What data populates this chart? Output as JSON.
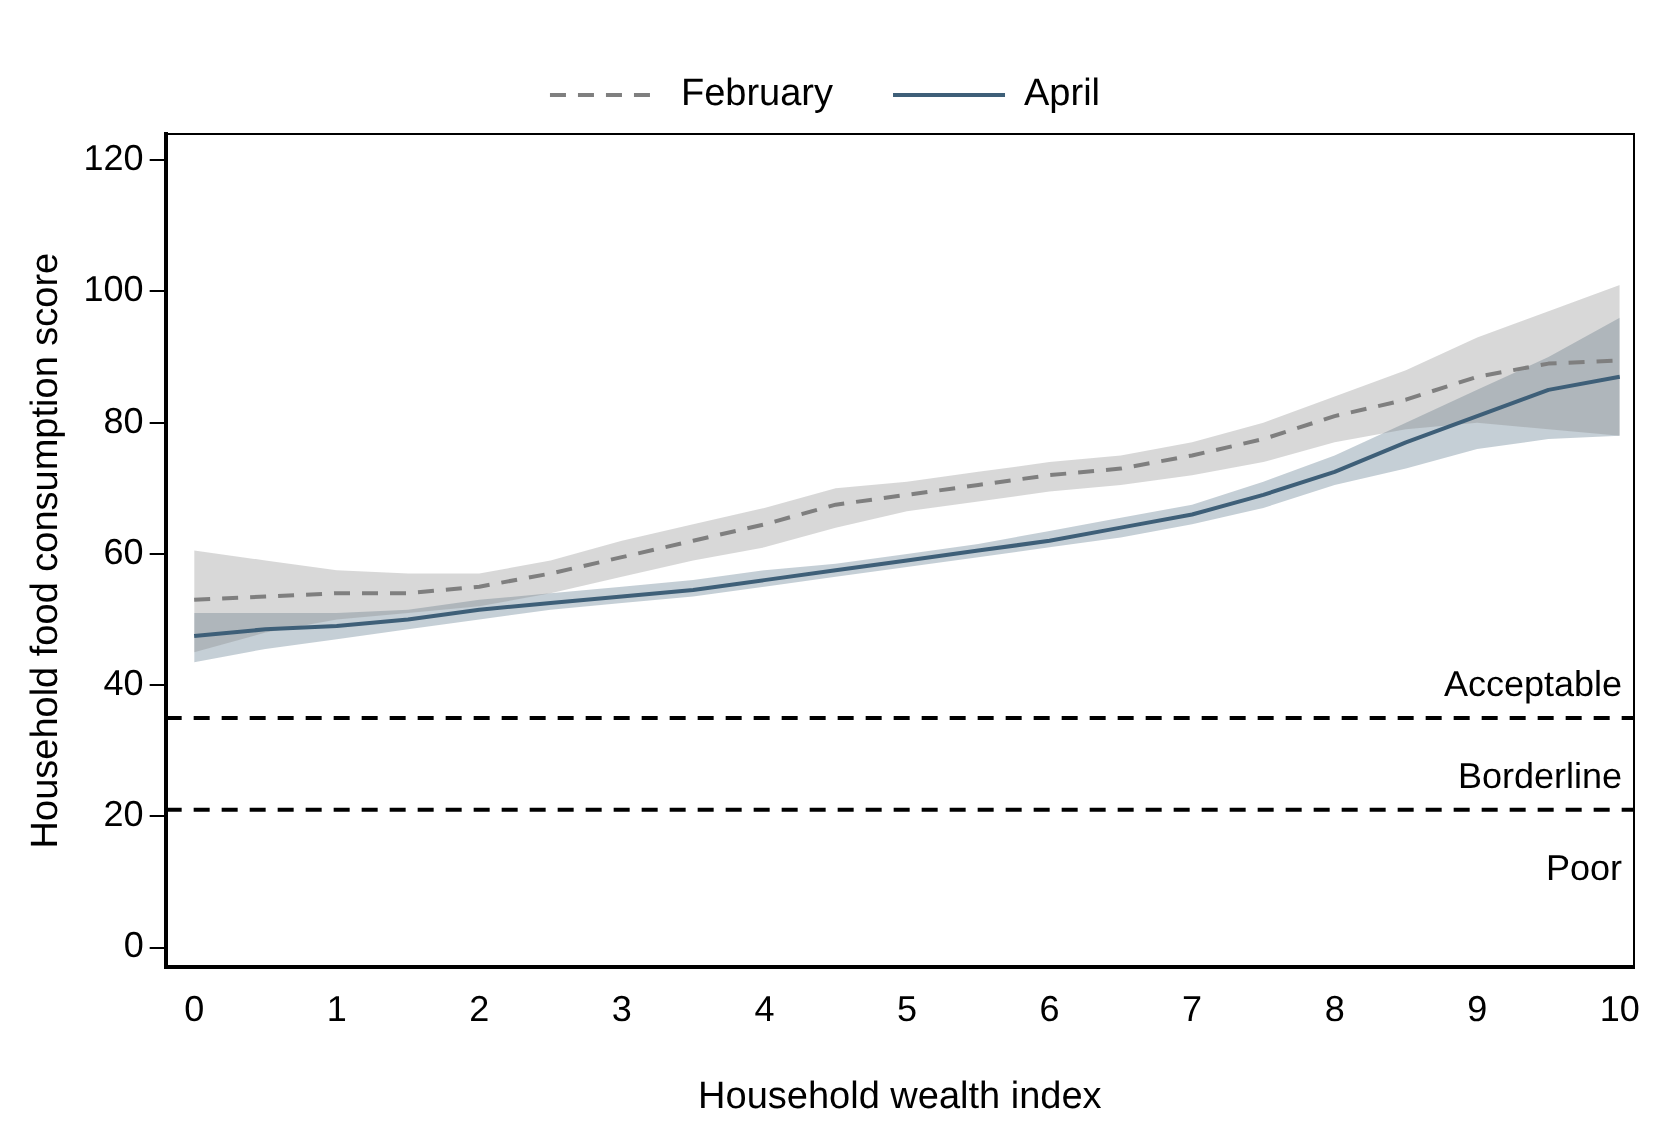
{
  "chart_data": {
    "type": "line",
    "xlabel": "Household wealth index",
    "ylabel": "Household food consumption score",
    "x": [
      0,
      0.5,
      1,
      1.5,
      2,
      2.5,
      3,
      3.5,
      4,
      4.5,
      5,
      5.5,
      6,
      6.5,
      7,
      7.5,
      8,
      8.5,
      9,
      9.5,
      10
    ],
    "series": [
      {
        "name": "February",
        "color": "#7f7f7f",
        "line_style": "dashed",
        "values": [
          53,
          53.5,
          54,
          54,
          55,
          57,
          59.5,
          62,
          64.5,
          67.5,
          69,
          70.5,
          72,
          73,
          75,
          77.5,
          81,
          83.5,
          87,
          89,
          89.5
        ],
        "lower": [
          45,
          48,
          50,
          51,
          52,
          54,
          56.5,
          59,
          61,
          64,
          66.5,
          68,
          69.5,
          70.5,
          72,
          74,
          77,
          79,
          80,
          79,
          78
        ],
        "upper": [
          60.5,
          59,
          57.5,
          57,
          57,
          59,
          62,
          64.5,
          67,
          70,
          71,
          72.5,
          74,
          75,
          77,
          80,
          84,
          88,
          93,
          97,
          101
        ]
      },
      {
        "name": "April",
        "color": "#3e5f78",
        "line_style": "solid",
        "values": [
          47.5,
          48.5,
          49,
          50,
          51.5,
          52.5,
          53.5,
          54.5,
          56,
          57.5,
          59,
          60.5,
          62,
          64,
          66,
          69,
          72.5,
          77,
          81,
          85,
          87
        ],
        "lower": [
          43.5,
          45.5,
          47,
          48.5,
          50,
          51.5,
          52.5,
          53.5,
          55,
          56.5,
          58,
          59.5,
          61,
          62.5,
          64.5,
          67,
          70.5,
          73,
          76,
          77.5,
          78
        ],
        "upper": [
          51,
          51,
          51,
          51.5,
          53,
          54,
          55,
          56,
          57.5,
          58.5,
          60,
          61.5,
          63.5,
          65.5,
          67.5,
          71,
          75,
          80,
          85,
          90,
          96
        ]
      }
    ],
    "xlim": [
      -0.2,
      10.1
    ],
    "ylim": [
      -3,
      124
    ],
    "xticks": [
      0,
      1,
      2,
      3,
      4,
      5,
      6,
      7,
      8,
      9,
      10
    ],
    "yticks": [
      0,
      20,
      40,
      60,
      80,
      100,
      120
    ],
    "ref_lines": [
      {
        "axis": "y",
        "value": 35,
        "color": "#000000",
        "line_style": "dashed"
      },
      {
        "axis": "y",
        "value": 21,
        "color": "#000000",
        "line_style": "dashed"
      }
    ],
    "annotations": [
      "Acceptable",
      "Borderline",
      "Poor"
    ],
    "grid": false,
    "legend": "top",
    "marker": "none"
  }
}
